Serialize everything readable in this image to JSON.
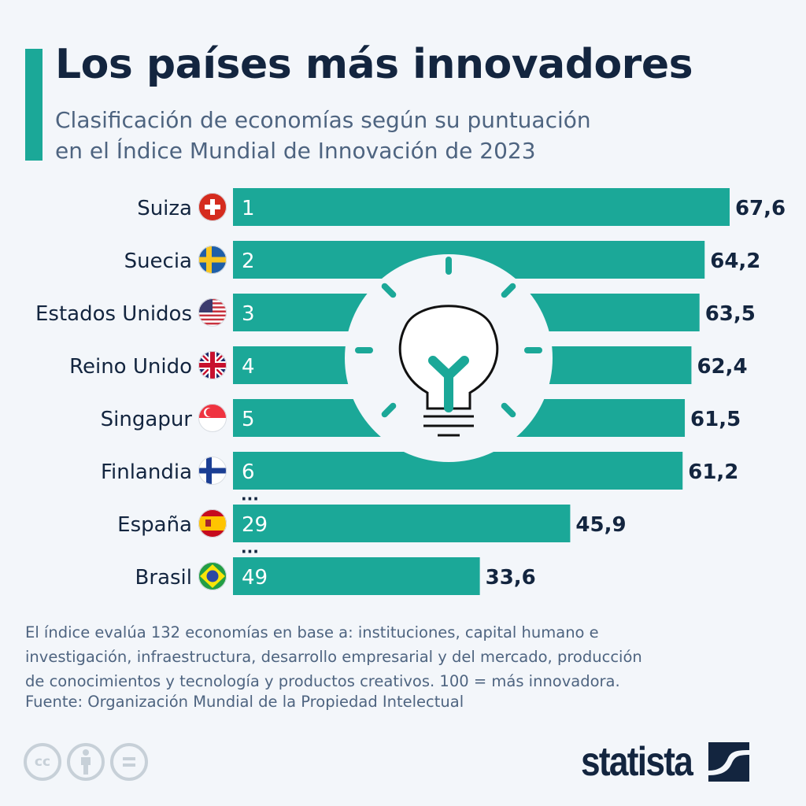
{
  "header": {
    "title": "Los países más innovadores",
    "subtitle_line1": "Clasificación de economías según su puntuación",
    "subtitle_line2": "en el Índice Mundial de Innovación de 2023"
  },
  "colors": {
    "bar": "#1ba898",
    "title": "#13253f",
    "text": "#4e6480",
    "background": "#f3f6fa"
  },
  "chart_data": {
    "type": "bar",
    "orientation": "horizontal",
    "title": "Los países más innovadores",
    "subtitle": "Clasificación de economías según su puntuación en el Índice Mundial de Innovación de 2023",
    "xlabel": "",
    "ylabel": "",
    "xlim": [
      0,
      100
    ],
    "grid": false,
    "categories": [
      "Suiza",
      "Suecia",
      "Estados Unidos",
      "Reino Unido",
      "Singapur",
      "Finlandia",
      "España",
      "Brasil"
    ],
    "ranks": [
      "1",
      "2",
      "3",
      "4",
      "5",
      "6",
      "29",
      "49"
    ],
    "values": [
      67.6,
      64.2,
      63.5,
      62.4,
      61.5,
      61.2,
      45.9,
      33.6
    ],
    "value_labels": [
      "67,6",
      "64,2",
      "63,5",
      "62,4",
      "61,5",
      "61,2",
      "45,9",
      "33,6"
    ],
    "flags": [
      "switzerland-flag-icon",
      "sweden-flag-icon",
      "usa-flag-icon",
      "uk-flag-icon",
      "singapore-flag-icon",
      "finland-flag-icon",
      "spain-flag-icon",
      "brazil-flag-icon"
    ],
    "gap_markers_after": [
      "Finlandia",
      "España"
    ],
    "gap_marker_text": "...",
    "decoration": "lightbulb-icon"
  },
  "footer": {
    "note_line1": "El índice evalúa 132 economías en base a: instituciones, capital humano e",
    "note_line2": "investigación, infraestructura, desarrollo empresarial y del mercado, producción",
    "note_line3": "de conocimientos y tecnología y productos creativos. 100 = más innovadora.",
    "source": "Fuente: Organización Mundial de la Propiedad Intelectual",
    "cc_label": "cc",
    "brand": "statista"
  }
}
